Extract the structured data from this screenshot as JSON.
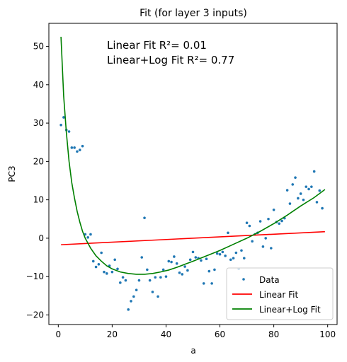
{
  "chart_data": {
    "type": "scatter",
    "title": "Fit (for layer 3 inputs)",
    "xlabel": "a",
    "ylabel": "PC3",
    "xlim": [
      -3.5,
      103.5
    ],
    "ylim": [
      -22.5,
      56
    ],
    "xticks": [
      0,
      20,
      40,
      60,
      80,
      100
    ],
    "yticks": [
      -20,
      -10,
      0,
      10,
      20,
      30,
      40,
      50
    ],
    "grid": false,
    "legend_position": "lower-right",
    "annotations": [
      "Linear Fit R²= 0.01",
      "Linear+Log Fit R²= 0.77"
    ],
    "series": [
      {
        "name": "Data",
        "kind": "scatter",
        "color": "#1f77b4",
        "points": [
          [
            1,
            29.5
          ],
          [
            2,
            31.5
          ],
          [
            3,
            28.2
          ],
          [
            4,
            27.8
          ],
          [
            5,
            23.6
          ],
          [
            6,
            23.6
          ],
          [
            7,
            22.6
          ],
          [
            8,
            23.0
          ],
          [
            9,
            24.0
          ],
          [
            10,
            1.0
          ],
          [
            11,
            0.2
          ],
          [
            12,
            1.0
          ],
          [
            13,
            -6.0
          ],
          [
            14,
            -7.5
          ],
          [
            15,
            -6.8
          ],
          [
            16,
            -3.8
          ],
          [
            17,
            -8.8
          ],
          [
            18,
            -9.2
          ],
          [
            19,
            -7.2
          ],
          [
            20,
            -8.8
          ],
          [
            21,
            -5.6
          ],
          [
            22,
            -8.0
          ],
          [
            23,
            -11.6
          ],
          [
            24,
            -10.2
          ],
          [
            25,
            -11.0
          ],
          [
            26,
            -18.6
          ],
          [
            27,
            -16.4
          ],
          [
            28,
            -15.2
          ],
          [
            29,
            -13.5
          ],
          [
            30,
            -11.0
          ],
          [
            31,
            -5.0
          ],
          [
            32,
            5.3
          ],
          [
            33,
            -8.2
          ],
          [
            34,
            -11.0
          ],
          [
            35,
            -14.0
          ],
          [
            36,
            -10.2
          ],
          [
            37,
            -15.2
          ],
          [
            38,
            -10.2
          ],
          [
            39,
            -8.2
          ],
          [
            40,
            -10.0
          ],
          [
            41,
            -6.0
          ],
          [
            42,
            -6.2
          ],
          [
            43,
            -4.8
          ],
          [
            44,
            -6.6
          ],
          [
            45,
            -9.0
          ],
          [
            46,
            -9.4
          ],
          [
            47,
            -7.4
          ],
          [
            48,
            -8.4
          ],
          [
            49,
            -5.6
          ],
          [
            50,
            -3.6
          ],
          [
            51,
            -5.0
          ],
          [
            52,
            -5.2
          ],
          [
            53,
            -5.8
          ],
          [
            54,
            -11.8
          ],
          [
            55,
            -5.4
          ],
          [
            56,
            -8.6
          ],
          [
            57,
            -11.8
          ],
          [
            58,
            -8.2
          ],
          [
            59,
            -4.0
          ],
          [
            60,
            -4.2
          ],
          [
            61,
            -3.6
          ],
          [
            62,
            -4.6
          ],
          [
            63,
            1.4
          ],
          [
            64,
            -5.6
          ],
          [
            65,
            -5.2
          ],
          [
            66,
            -3.8
          ],
          [
            67,
            -8.0
          ],
          [
            68,
            -3.2
          ],
          [
            69,
            -5.2
          ],
          [
            70,
            4.0
          ],
          [
            71,
            3.2
          ],
          [
            72,
            -0.8
          ],
          [
            73,
            1.0
          ],
          [
            74,
            1.4
          ],
          [
            75,
            4.4
          ],
          [
            76,
            -2.2
          ],
          [
            77,
            0.0
          ],
          [
            78,
            5.0
          ],
          [
            79,
            -2.6
          ],
          [
            80,
            7.4
          ],
          [
            81,
            4.2
          ],
          [
            82,
            3.8
          ],
          [
            83,
            4.5
          ],
          [
            84,
            5.2
          ],
          [
            85,
            12.5
          ],
          [
            86,
            9.0
          ],
          [
            87,
            14.0
          ],
          [
            88,
            15.8
          ],
          [
            89,
            10.4
          ],
          [
            90,
            11.6
          ],
          [
            91,
            10.0
          ],
          [
            92,
            13.4
          ],
          [
            93,
            12.8
          ],
          [
            94,
            13.4
          ],
          [
            95,
            17.4
          ],
          [
            96,
            9.4
          ],
          [
            97,
            12.4
          ],
          [
            98,
            7.8
          ]
        ]
      },
      {
        "name": "Linear Fit",
        "kind": "line",
        "color": "#ff0000",
        "points": [
          [
            1,
            -1.7
          ],
          [
            99,
            1.7
          ]
        ]
      },
      {
        "name": "Linear+Log Fit",
        "kind": "line",
        "color": "#008000",
        "points": [
          [
            1,
            52.5
          ],
          [
            2,
            37.0
          ],
          [
            3,
            27.5
          ],
          [
            4,
            20.0
          ],
          [
            5,
            14.5
          ],
          [
            6,
            10.5
          ],
          [
            7,
            7.0
          ],
          [
            8,
            4.2
          ],
          [
            9,
            1.8
          ],
          [
            10,
            0.0
          ],
          [
            12,
            -2.6
          ],
          [
            14,
            -4.6
          ],
          [
            16,
            -6.0
          ],
          [
            18,
            -7.2
          ],
          [
            20,
            -8.0
          ],
          [
            23,
            -8.8
          ],
          [
            26,
            -9.2
          ],
          [
            29,
            -9.4
          ],
          [
            32,
            -9.4
          ],
          [
            35,
            -9.2
          ],
          [
            38,
            -8.8
          ],
          [
            41,
            -8.3
          ],
          [
            44,
            -7.6
          ],
          [
            47,
            -6.8
          ],
          [
            50,
            -6.0
          ],
          [
            55,
            -4.6
          ],
          [
            60,
            -3.2
          ],
          [
            65,
            -1.6
          ],
          [
            70,
            0.0
          ],
          [
            75,
            1.8
          ],
          [
            80,
            3.8
          ],
          [
            85,
            6.0
          ],
          [
            90,
            8.4
          ],
          [
            95,
            10.6
          ],
          [
            99,
            12.7
          ]
        ]
      }
    ]
  }
}
